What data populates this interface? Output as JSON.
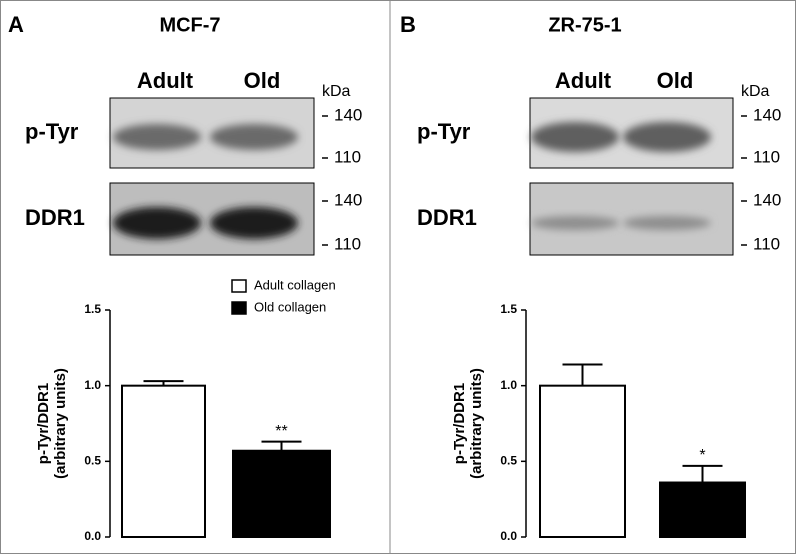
{
  "chart_data": [
    {
      "type": "bar",
      "panel_label": "A",
      "title": "MCF-7",
      "blot_lanes": [
        "Adult",
        "Old"
      ],
      "blot_rows": [
        "p-Tyr",
        "DDR1"
      ],
      "size_unit": "kDa",
      "size_markers": [
        140,
        110
      ],
      "ylabel": [
        "p-Tyr/DDR1",
        "(arbitrary units)"
      ],
      "categories": [
        "Adult collagen",
        "Old collagen"
      ],
      "colors": [
        "#ffffff",
        "#000000"
      ],
      "values": [
        1.0,
        0.57
      ],
      "errors": [
        0.03,
        0.06
      ],
      "significance": [
        null,
        "**"
      ],
      "ylim": [
        0,
        1.5
      ],
      "yticks": [
        {
          "value": 0,
          "label": "0.0"
        },
        0.5,
        {
          "value": 1,
          "label": "1.0"
        },
        1.5
      ],
      "legend": true
    },
    {
      "type": "bar",
      "panel_label": "B",
      "title": "ZR-75-1",
      "blot_lanes": [
        "Adult",
        "Old"
      ],
      "blot_rows": [
        "p-Tyr",
        "DDR1"
      ],
      "size_unit": "kDa",
      "size_markers": [
        140,
        110
      ],
      "ylabel": [
        "p-Tyr/DDR1",
        "(arbitrary units)"
      ],
      "categories": [
        null,
        null
      ],
      "colors": [
        "#ffffff",
        "#000000"
      ],
      "values": [
        1.0,
        0.36
      ],
      "errors": [
        0.14,
        0.11
      ],
      "significance": [
        null,
        "*"
      ],
      "ylim": [
        0,
        1.5
      ],
      "yticks": [
        {
          "value": 0,
          "label": "0.0"
        },
        0.5,
        {
          "value": 1,
          "label": "1.0"
        },
        1.5
      ],
      "legend": false
    }
  ]
}
